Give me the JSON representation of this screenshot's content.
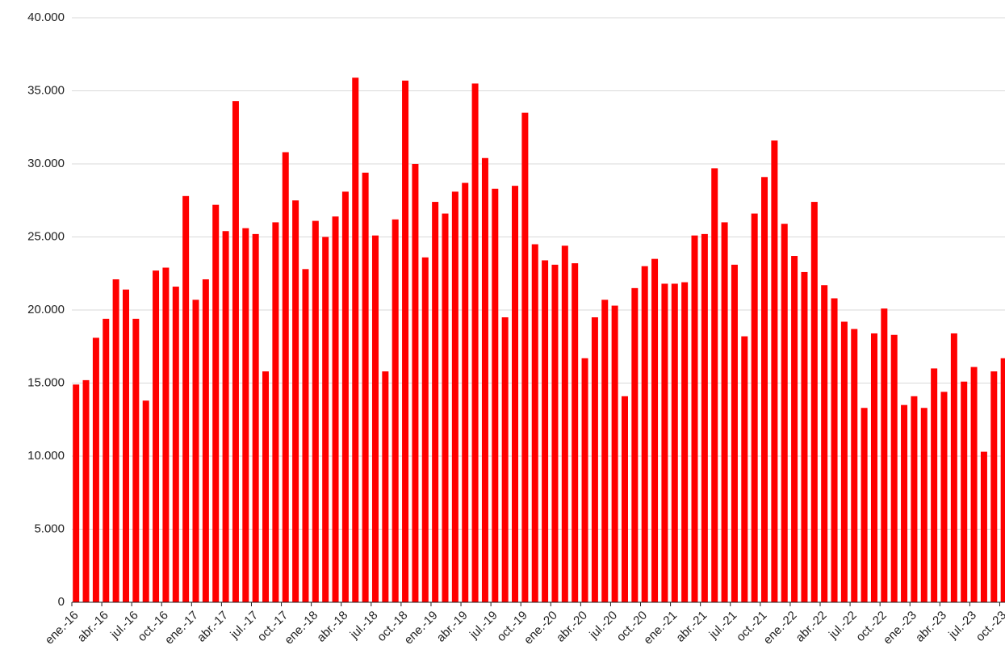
{
  "chart_data": {
    "type": "bar",
    "categories": [
      "ene.-16",
      null,
      null,
      "abr.-16",
      null,
      null,
      "jul.-16",
      null,
      null,
      "oct.-16",
      null,
      null,
      "ene.-17",
      null,
      null,
      "abr.-17",
      null,
      null,
      "jul.-17",
      null,
      null,
      "oct.-17",
      null,
      null,
      "ene.-18",
      null,
      null,
      "abr.-18",
      null,
      null,
      "jul.-18",
      null,
      null,
      "oct.-18",
      null,
      null,
      "ene.-19",
      null,
      null,
      "abr.-19",
      null,
      null,
      "jul.-19",
      null,
      null,
      "oct.-19",
      null,
      null,
      "ene.-20",
      null,
      null,
      "abr.-20",
      null,
      null,
      "jul.-20",
      null,
      null,
      "oct.-20",
      null,
      null,
      "ene.-21",
      null,
      null,
      "abr.-21",
      null,
      null,
      "jul.-21",
      null,
      null,
      "oct.-21",
      null,
      null,
      "ene.-22",
      null,
      null,
      "abr.-22",
      null,
      null,
      "jul.-22",
      null,
      null,
      "oct.-22",
      null,
      null,
      "ene.-23",
      null,
      null,
      "abr.-23",
      null,
      null,
      "jul.-23",
      null,
      null,
      "oct.-23"
    ],
    "values": [
      14900,
      15200,
      18100,
      19400,
      22100,
      21400,
      19400,
      13800,
      22700,
      22900,
      21600,
      27800,
      20700,
      22100,
      27200,
      25400,
      34300,
      25600,
      25200,
      15800,
      26000,
      30800,
      27500,
      22800,
      26100,
      25000,
      26400,
      28100,
      35900,
      29400,
      25100,
      15800,
      26200,
      35700,
      30000,
      23600,
      27400,
      26600,
      28100,
      28700,
      35500,
      30400,
      28300,
      19500,
      28500,
      33500,
      24500,
      23400,
      23100,
      24400,
      23200,
      16700,
      19500,
      20700,
      20300,
      14100,
      21500,
      23000,
      23500,
      21800,
      21800,
      21900,
      25100,
      25200,
      29700,
      26000,
      23100,
      18200,
      26600,
      29100,
      31600,
      25900,
      23700,
      22600,
      27400,
      21700,
      20800,
      19200,
      18700,
      13300,
      18400,
      20100,
      18300,
      13500,
      14100,
      13300,
      16000,
      14400,
      18400,
      15100,
      16100,
      10300,
      15800,
      16700
    ],
    "color": "#ff0000",
    "ylim": [
      0,
      40000
    ],
    "yticks": [
      {
        "value": 0,
        "label": "0"
      },
      {
        "value": 5000,
        "label": "5.000"
      },
      {
        "value": 10000,
        "label": "10.000"
      },
      {
        "value": 15000,
        "label": "15.000"
      },
      {
        "value": 20000,
        "label": "20.000"
      },
      {
        "value": 25000,
        "label": "25.000"
      },
      {
        "value": 30000,
        "label": "30.000"
      },
      {
        "value": 35000,
        "label": "35.000"
      },
      {
        "value": 40000,
        "label": "40.000"
      }
    ],
    "grid": true
  }
}
